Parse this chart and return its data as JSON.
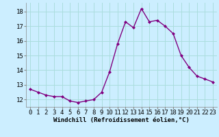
{
  "x": [
    0,
    1,
    2,
    3,
    4,
    5,
    6,
    7,
    8,
    9,
    10,
    11,
    12,
    13,
    14,
    15,
    16,
    17,
    18,
    19,
    20,
    21,
    22,
    23
  ],
  "y": [
    12.7,
    12.5,
    12.3,
    12.2,
    12.2,
    11.9,
    11.8,
    11.9,
    12.0,
    12.5,
    13.9,
    15.8,
    17.3,
    16.9,
    18.2,
    17.3,
    17.4,
    17.0,
    16.5,
    15.0,
    14.2,
    13.6,
    13.4,
    13.2
  ],
  "line_color": "#800080",
  "marker": "D",
  "marker_size": 2.0,
  "line_width": 1.0,
  "bg_color": "#cceeff",
  "grid_color": "#aadddd",
  "xlabel": "Windchill (Refroidissement éolien,°C)",
  "xlabel_fontsize": 6.5,
  "xtick_labels": [
    "0",
    "1",
    "2",
    "3",
    "4",
    "5",
    "6",
    "7",
    "8",
    "9",
    "10",
    "11",
    "12",
    "13",
    "14",
    "15",
    "16",
    "17",
    "18",
    "19",
    "20",
    "21",
    "22",
    "23"
  ],
  "ytick_values": [
    12,
    13,
    14,
    15,
    16,
    17,
    18
  ],
  "ylim": [
    11.5,
    18.6
  ],
  "xlim": [
    -0.5,
    23.5
  ],
  "tick_fontsize": 6.5
}
